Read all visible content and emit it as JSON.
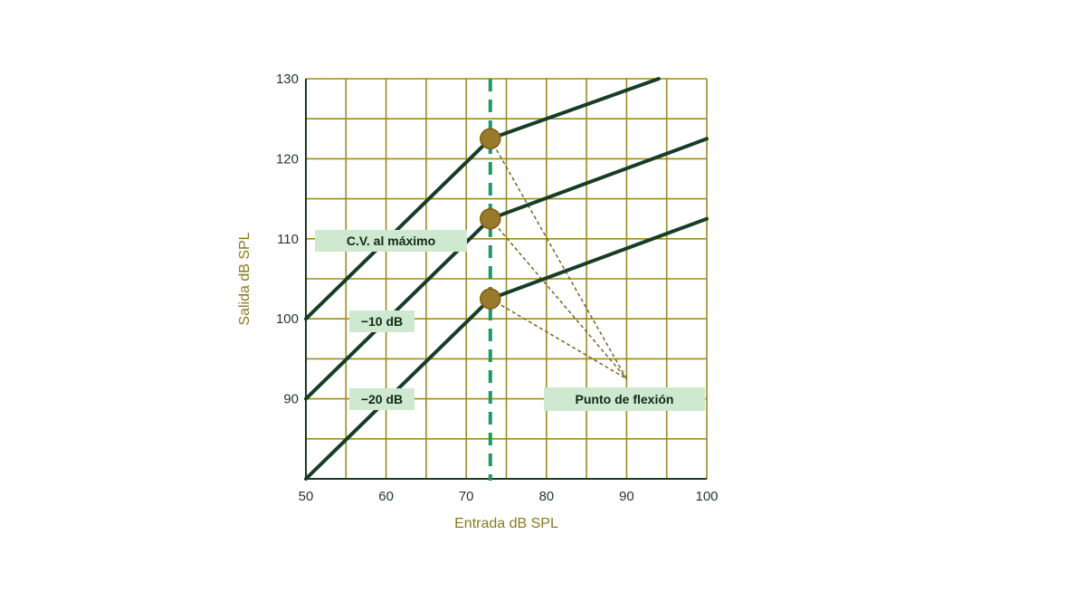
{
  "chart_data": {
    "type": "line",
    "xlabel": "Entrada dB SPL",
    "ylabel": "Salida dB SPL",
    "xlim": [
      50,
      100
    ],
    "ylim": [
      80,
      130
    ],
    "x_ticks": [
      "50",
      "60",
      "70",
      "80",
      "90",
      "100"
    ],
    "y_ticks": [
      "90",
      "100",
      "110",
      "120",
      "130"
    ],
    "grid": true,
    "grid_step": 5,
    "knee_input": 73,
    "series": [
      {
        "name": "C.V. al máximo",
        "points": [
          [
            50,
            100
          ],
          [
            73,
            122.5
          ],
          [
            94,
            130
          ]
        ]
      },
      {
        "name": "−10 dB",
        "points": [
          [
            50,
            90
          ],
          [
            73,
            112.5
          ],
          [
            100,
            122.5
          ]
        ]
      },
      {
        "name": "−20 dB",
        "points": [
          [
            50,
            80
          ],
          [
            73,
            102.5
          ],
          [
            100,
            112.5
          ]
        ]
      }
    ],
    "annotation": {
      "text": "Punto de flexión",
      "target_x": 90,
      "target_y": 92.5,
      "points": [
        [
          73,
          122.5
        ],
        [
          73,
          112.5
        ],
        [
          73,
          102.5
        ]
      ]
    },
    "colors": {
      "line": "#173d26",
      "grid": "#9c8a24",
      "axis": "#1e3a24",
      "marker": "#9a7a2a",
      "marker_edge": "#7a5c18",
      "knee_line": "#1f9a62",
      "label_bg": "#cfe8d0",
      "leader": "#7a6420"
    }
  }
}
